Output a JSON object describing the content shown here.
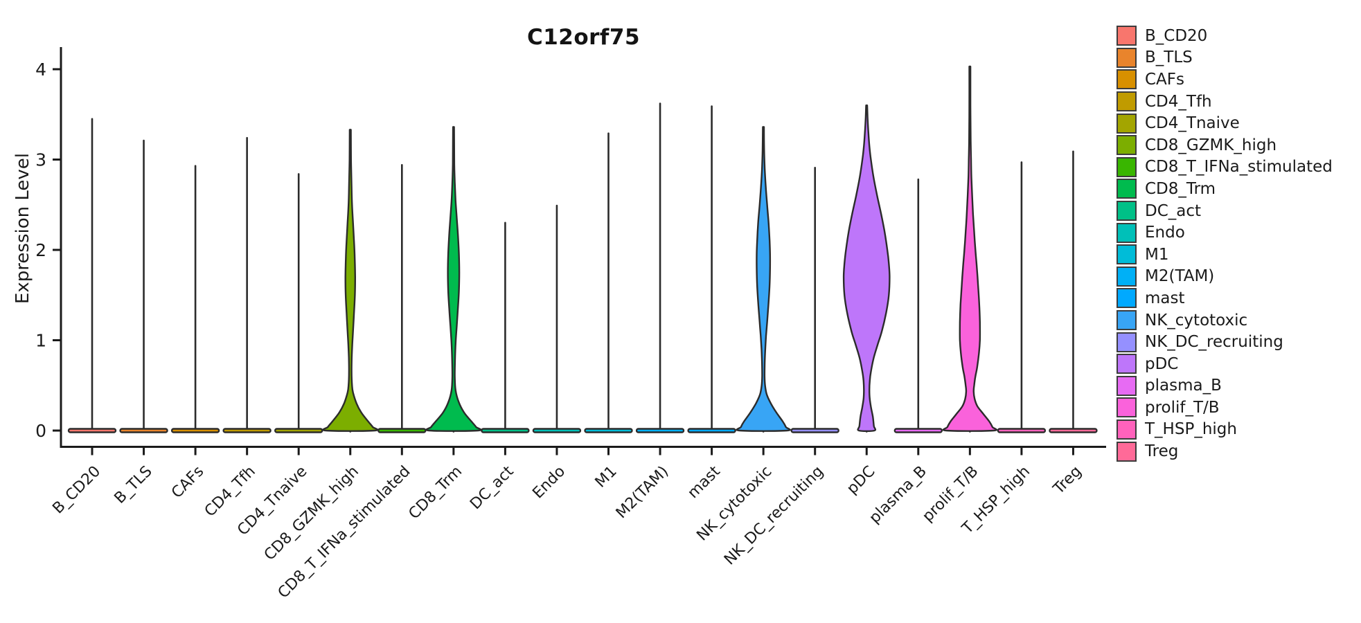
{
  "title": "C12orf75",
  "y_axis": {
    "label": "Expression Level",
    "ticks": [
      "0",
      "1",
      "2",
      "3",
      "4"
    ]
  },
  "x_axis": {
    "label": ""
  },
  "legend": {
    "position": "right"
  },
  "chart_data": {
    "type": "violin",
    "title": "C12orf75",
    "xlabel": "",
    "ylabel": "Expression Level",
    "ylim": [
      0,
      4.25
    ],
    "yticks": [
      0,
      1,
      2,
      3,
      4
    ],
    "grid": false,
    "legend_position": "right",
    "profile_format": "density_profile entries are [expression_level, relative_half_width 0..1]; series without a profile show only a thin max-expression spike plus a flat base lens at 0",
    "categories": [
      "B_CD20",
      "B_TLS",
      "CAFs",
      "CD4_Tfh",
      "CD4_Tnaive",
      "CD8_GZMK_high",
      "CD8_T_IFNa_stimulated",
      "CD8_Trm",
      "DC_act",
      "Endo",
      "M1",
      "M2(TAM)",
      "mast",
      "NK_cytotoxic",
      "NK_DC_recruiting",
      "pDC",
      "plasma_B",
      "prolif_T/B",
      "T_HSP_high",
      "Treg"
    ],
    "series": [
      {
        "name": "B_CD20",
        "color": "#F8766D",
        "max_expression": 3.45,
        "density_profile": null
      },
      {
        "name": "B_TLS",
        "color": "#E9842C",
        "max_expression": 3.21,
        "density_profile": null
      },
      {
        "name": "CAFs",
        "color": "#D89000",
        "max_expression": 2.93,
        "density_profile": null
      },
      {
        "name": "CD4_Tfh",
        "color": "#C09B00",
        "max_expression": 3.24,
        "density_profile": null
      },
      {
        "name": "CD4_Tnaive",
        "color": "#A3A500",
        "max_expression": 2.84,
        "density_profile": null
      },
      {
        "name": "CD8_GZMK_high",
        "color": "#7CAE00",
        "max_expression": 3.33,
        "density_profile": [
          [
            3.33,
            0.014
          ],
          [
            3.0,
            0.03
          ],
          [
            2.7,
            0.05
          ],
          [
            2.5,
            0.07
          ],
          [
            2.3,
            0.11
          ],
          [
            2.1,
            0.15
          ],
          [
            1.9,
            0.18
          ],
          [
            1.7,
            0.195
          ],
          [
            1.5,
            0.185
          ],
          [
            1.3,
            0.15
          ],
          [
            1.1,
            0.11
          ],
          [
            0.95,
            0.08
          ],
          [
            0.8,
            0.058
          ],
          [
            0.65,
            0.05
          ],
          [
            0.5,
            0.07
          ],
          [
            0.42,
            0.11
          ],
          [
            0.3,
            0.25
          ],
          [
            0.2,
            0.44
          ],
          [
            0.1,
            0.72
          ],
          [
            0.04,
            0.9
          ],
          [
            0.0,
            0.97
          ]
        ]
      },
      {
        "name": "CD8_T_IFNa_stimulated",
        "color": "#39B600",
        "max_expression": 2.94,
        "density_profile": null
      },
      {
        "name": "CD8_Trm",
        "color": "#00BB4E",
        "max_expression": 3.36,
        "density_profile": [
          [
            3.36,
            0.014
          ],
          [
            2.95,
            0.03
          ],
          [
            2.75,
            0.05
          ],
          [
            2.55,
            0.08
          ],
          [
            2.35,
            0.13
          ],
          [
            2.15,
            0.18
          ],
          [
            1.95,
            0.215
          ],
          [
            1.75,
            0.228
          ],
          [
            1.55,
            0.215
          ],
          [
            1.35,
            0.175
          ],
          [
            1.15,
            0.125
          ],
          [
            0.98,
            0.085
          ],
          [
            0.8,
            0.06
          ],
          [
            0.6,
            0.05
          ],
          [
            0.45,
            0.08
          ],
          [
            0.32,
            0.2
          ],
          [
            0.2,
            0.42
          ],
          [
            0.1,
            0.72
          ],
          [
            0.04,
            0.9
          ],
          [
            0.0,
            0.97
          ]
        ]
      },
      {
        "name": "DC_act",
        "color": "#00C087",
        "max_expression": 2.3,
        "density_profile": null
      },
      {
        "name": "Endo",
        "color": "#00C0B8",
        "max_expression": 2.49,
        "density_profile": null
      },
      {
        "name": "M1",
        "color": "#00BCD8",
        "max_expression": 3.29,
        "density_profile": null
      },
      {
        "name": "M2(TAM)",
        "color": "#00B0F6",
        "max_expression": 3.62,
        "density_profile": null
      },
      {
        "name": "mast",
        "color": "#00A9FF",
        "max_expression": 3.59,
        "density_profile": null
      },
      {
        "name": "NK_cytotoxic",
        "color": "#38A5F5",
        "max_expression": 3.36,
        "density_profile": [
          [
            3.36,
            0.014
          ],
          [
            3.1,
            0.033
          ],
          [
            2.9,
            0.055
          ],
          [
            2.7,
            0.095
          ],
          [
            2.5,
            0.15
          ],
          [
            2.3,
            0.21
          ],
          [
            2.1,
            0.25
          ],
          [
            1.95,
            0.268
          ],
          [
            1.8,
            0.268
          ],
          [
            1.6,
            0.248
          ],
          [
            1.4,
            0.205
          ],
          [
            1.2,
            0.15
          ],
          [
            1.05,
            0.108
          ],
          [
            0.9,
            0.075
          ],
          [
            0.75,
            0.055
          ],
          [
            0.6,
            0.048
          ],
          [
            0.5,
            0.068
          ],
          [
            0.4,
            0.135
          ],
          [
            0.3,
            0.3
          ],
          [
            0.2,
            0.52
          ],
          [
            0.1,
            0.78
          ],
          [
            0.04,
            0.9
          ],
          [
            0.0,
            0.94
          ]
        ]
      },
      {
        "name": "NK_DC_recruiting",
        "color": "#9590FF",
        "max_expression": 2.91,
        "density_profile": null
      },
      {
        "name": "pDC",
        "color": "#BE76FA",
        "max_expression": 3.6,
        "density_profile": [
          [
            3.6,
            0.012
          ],
          [
            3.45,
            0.04
          ],
          [
            3.3,
            0.07
          ],
          [
            3.15,
            0.11
          ],
          [
            3.0,
            0.17
          ],
          [
            2.8,
            0.28
          ],
          [
            2.6,
            0.42
          ],
          [
            2.4,
            0.58
          ],
          [
            2.2,
            0.72
          ],
          [
            2.0,
            0.83
          ],
          [
            1.85,
            0.89
          ],
          [
            1.7,
            0.92
          ],
          [
            1.5,
            0.89
          ],
          [
            1.3,
            0.78
          ],
          [
            1.1,
            0.61
          ],
          [
            0.95,
            0.44
          ],
          [
            0.8,
            0.28
          ],
          [
            0.65,
            0.17
          ],
          [
            0.55,
            0.125
          ],
          [
            0.45,
            0.11
          ],
          [
            0.35,
            0.125
          ],
          [
            0.25,
            0.18
          ],
          [
            0.15,
            0.25
          ],
          [
            0.05,
            0.29
          ],
          [
            0.0,
            0.31
          ]
        ]
      },
      {
        "name": "plasma_B",
        "color": "#E76BF3",
        "max_expression": 2.78,
        "density_profile": null
      },
      {
        "name": "prolif_T/B",
        "color": "#FA62DB",
        "max_expression": 4.03,
        "density_profile": [
          [
            4.03,
            0.011
          ],
          [
            3.6,
            0.022
          ],
          [
            3.2,
            0.033
          ],
          [
            3.0,
            0.045
          ],
          [
            2.8,
            0.06
          ],
          [
            2.6,
            0.09
          ],
          [
            2.4,
            0.125
          ],
          [
            2.2,
            0.17
          ],
          [
            2.0,
            0.22
          ],
          [
            1.8,
            0.28
          ],
          [
            1.6,
            0.33
          ],
          [
            1.4,
            0.375
          ],
          [
            1.2,
            0.4
          ],
          [
            1.0,
            0.4
          ],
          [
            0.85,
            0.36
          ],
          [
            0.7,
            0.29
          ],
          [
            0.6,
            0.22
          ],
          [
            0.5,
            0.17
          ],
          [
            0.43,
            0.15
          ],
          [
            0.35,
            0.19
          ],
          [
            0.27,
            0.3
          ],
          [
            0.18,
            0.55
          ],
          [
            0.1,
            0.78
          ],
          [
            0.04,
            0.9
          ],
          [
            0.0,
            0.94
          ]
        ]
      },
      {
        "name": "T_HSP_high",
        "color": "#FF62BC",
        "max_expression": 2.97,
        "density_profile": null
      },
      {
        "name": "Treg",
        "color": "#FF6A98",
        "max_expression": 3.09,
        "density_profile": null
      }
    ]
  }
}
